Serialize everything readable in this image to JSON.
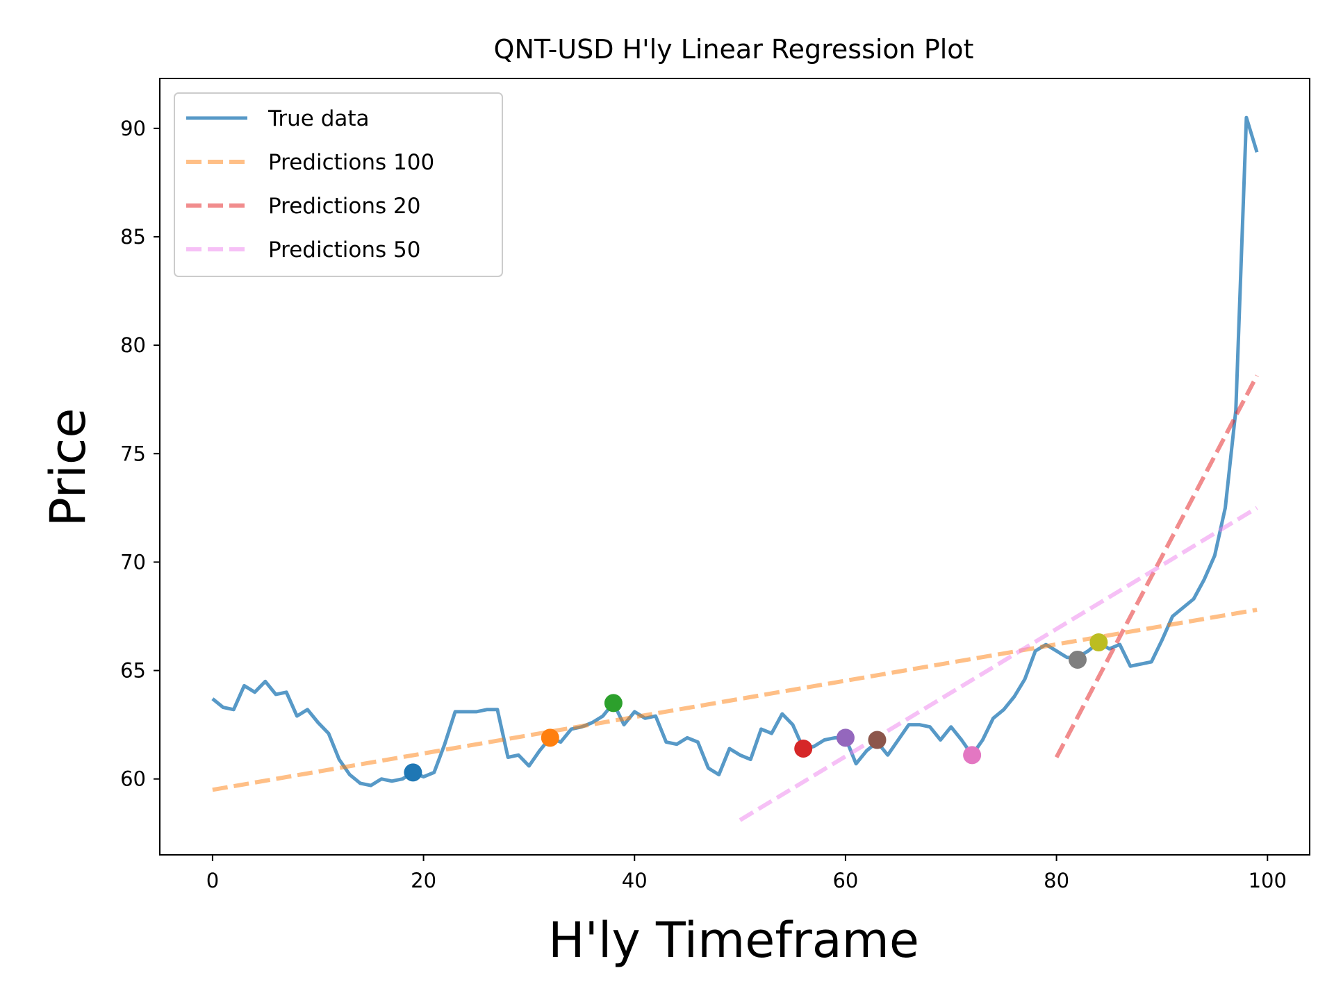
{
  "chart_data": {
    "type": "line",
    "title": "QNT-USD H'ly Linear Regression Plot",
    "xlabel": "H'ly Timeframe",
    "ylabel": "Price",
    "xlim": [
      -5,
      104
    ],
    "ylim": [
      56.5,
      92.3
    ],
    "xticks": [
      0,
      20,
      40,
      60,
      80,
      100
    ],
    "yticks": [
      60,
      65,
      70,
      75,
      80,
      85,
      90
    ],
    "grid": false,
    "legend_position": "top-left",
    "series": [
      {
        "name": "True data",
        "style": "solid",
        "color": "#1f77b4",
        "x": [
          0,
          1,
          2,
          3,
          4,
          5,
          6,
          7,
          8,
          9,
          10,
          11,
          12,
          13,
          14,
          15,
          16,
          17,
          18,
          19,
          20,
          21,
          22,
          23,
          24,
          25,
          26,
          27,
          28,
          29,
          30,
          31,
          32,
          33,
          34,
          35,
          36,
          37,
          38,
          39,
          40,
          41,
          42,
          43,
          44,
          45,
          46,
          47,
          48,
          49,
          50,
          51,
          52,
          53,
          54,
          55,
          56,
          57,
          58,
          59,
          60,
          61,
          62,
          63,
          64,
          65,
          66,
          67,
          68,
          69,
          70,
          71,
          72,
          73,
          74,
          75,
          76,
          77,
          78,
          79,
          80,
          81,
          82,
          83,
          84,
          85,
          86,
          87,
          88,
          89,
          90,
          91,
          92,
          93,
          94,
          95,
          96,
          97,
          98,
          99
        ],
        "values": [
          63.7,
          63.3,
          63.2,
          64.3,
          64.0,
          64.5,
          63.9,
          64.0,
          62.9,
          63.2,
          62.6,
          62.1,
          60.9,
          60.2,
          59.8,
          59.7,
          60.0,
          59.9,
          60.0,
          60.3,
          60.1,
          60.3,
          61.6,
          63.1,
          63.1,
          63.1,
          63.2,
          63.2,
          61.0,
          61.1,
          60.6,
          61.3,
          61.9,
          61.7,
          62.3,
          62.4,
          62.6,
          62.9,
          63.5,
          62.5,
          63.1,
          62.8,
          62.9,
          61.7,
          61.6,
          61.9,
          61.7,
          60.5,
          60.2,
          61.4,
          61.1,
          60.9,
          62.3,
          62.1,
          63.0,
          62.5,
          61.4,
          61.5,
          61.8,
          61.9,
          61.9,
          60.7,
          61.3,
          61.7,
          61.1,
          61.8,
          62.5,
          62.5,
          62.4,
          61.8,
          62.4,
          61.8,
          61.1,
          61.8,
          62.8,
          63.2,
          63.8,
          64.6,
          65.9,
          66.2,
          65.9,
          65.6,
          65.6,
          65.9,
          66.3,
          66.0,
          66.2,
          65.2,
          65.3,
          65.4,
          66.4,
          67.5,
          67.9,
          68.3,
          69.2,
          70.3,
          72.5,
          77.0,
          90.5,
          88.9
        ]
      },
      {
        "name": "Predictions 100",
        "style": "dashed",
        "color": "#ff7f0e",
        "x": [
          0,
          99
        ],
        "values": [
          59.5,
          67.8
        ]
      },
      {
        "name": "Predictions 20",
        "style": "dashed",
        "color": "#e41a1c",
        "x": [
          80,
          99
        ],
        "values": [
          61.0,
          78.6
        ]
      },
      {
        "name": "Predictions 50",
        "style": "dashed",
        "color": "#ee82ee",
        "x": [
          50,
          99
        ],
        "values": [
          58.1,
          72.5
        ]
      }
    ],
    "markers": [
      {
        "x": 19,
        "y": 60.3,
        "color": "#1f77b4"
      },
      {
        "x": 32,
        "y": 61.9,
        "color": "#ff7f0e"
      },
      {
        "x": 38,
        "y": 63.5,
        "color": "#2ca02c"
      },
      {
        "x": 56,
        "y": 61.4,
        "color": "#d62728"
      },
      {
        "x": 60,
        "y": 61.9,
        "color": "#9467bd"
      },
      {
        "x": 63,
        "y": 61.8,
        "color": "#8c564b"
      },
      {
        "x": 72,
        "y": 61.1,
        "color": "#e377c2"
      },
      {
        "x": 82,
        "y": 65.5,
        "color": "#7f7f7f"
      },
      {
        "x": 84,
        "y": 66.3,
        "color": "#bcbd22"
      }
    ]
  }
}
